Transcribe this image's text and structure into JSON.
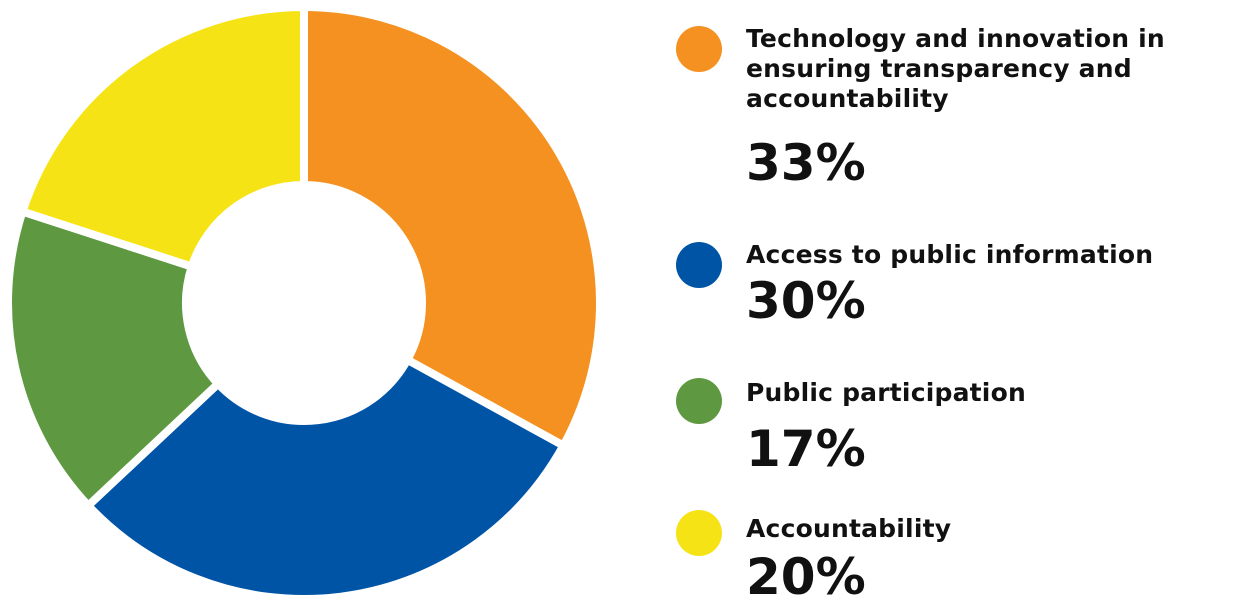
{
  "chart_data": {
    "type": "pie",
    "donut": true,
    "title": "",
    "legend_position": "right",
    "categories": [
      "Technology and innovation in ensuring transparency and accountability",
      "Access to public information",
      "Public participation",
      "Accountability"
    ],
    "values": [
      33,
      30,
      17,
      20
    ],
    "value_labels": [
      "33%",
      "30%",
      "17%",
      "20%"
    ],
    "colors": [
      "#F59121",
      "#0054A6",
      "#5E9941",
      "#F6E316"
    ]
  },
  "legend": [
    {
      "label": "Technology and innovation in ensuring transparency and accountability",
      "value": "33%",
      "color": "#F59121",
      "icon": "orange-circle-icon"
    },
    {
      "label": "Access to public information",
      "value": "30%",
      "color": "#0054A6",
      "icon": "blue-circle-icon"
    },
    {
      "label": "Public participation",
      "value": "17%",
      "color": "#5E9941",
      "icon": "green-circle-icon"
    },
    {
      "label": "Accountability",
      "value": "20%",
      "color": "#F6E316",
      "icon": "yellow-circle-icon"
    }
  ]
}
